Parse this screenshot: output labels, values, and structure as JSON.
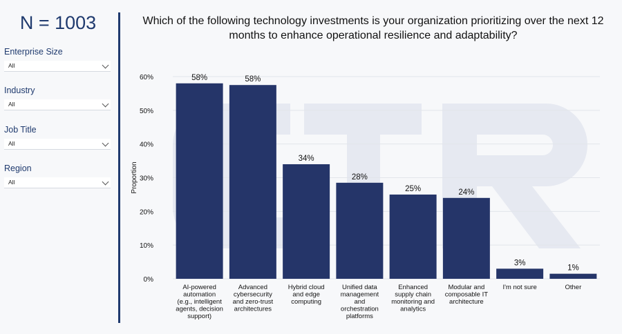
{
  "sidebar": {
    "n_label": "N = 1003",
    "filters": [
      {
        "label": "Enterprise Size",
        "value": "All"
      },
      {
        "label": "Industry",
        "value": "All"
      },
      {
        "label": "Job Title",
        "value": "All"
      },
      {
        "label": "Region",
        "value": "All"
      }
    ]
  },
  "question": "Which of the following technology investments is your organization prioritizing over the next 12 months to enhance operational resilience and adaptability?",
  "colors": {
    "bar": "#253569",
    "accent": "#1f3a6e"
  },
  "chart_data": {
    "type": "bar",
    "categories": [
      [
        "AI-powered",
        "automation",
        "(e.g., intelligent",
        "agents, decision",
        "support)"
      ],
      [
        "Advanced",
        "cybersecurity",
        "and zero-trust",
        "architectures"
      ],
      [
        "Hybrid cloud",
        "and edge",
        "computing"
      ],
      [
        "Unified data",
        "management",
        "and",
        "orchestration",
        "platforms"
      ],
      [
        "Enhanced",
        "supply chain",
        "monitoring and",
        "analytics"
      ],
      [
        "Modular and",
        "composable IT",
        "architecture"
      ],
      [
        "I'm not sure"
      ],
      [
        "Other"
      ]
    ],
    "values": [
      0.58,
      0.575,
      0.34,
      0.285,
      0.25,
      0.24,
      0.03,
      0.015
    ],
    "data_labels": [
      "58%",
      "58%",
      "34%",
      "28%",
      "25%",
      "24%",
      "3%",
      "1%"
    ],
    "ylabel": "Proportion",
    "yticks": [
      "0%",
      "10%",
      "20%",
      "30%",
      "40%",
      "50%",
      "60%"
    ],
    "ylim": [
      0,
      0.6
    ],
    "grid": true
  }
}
